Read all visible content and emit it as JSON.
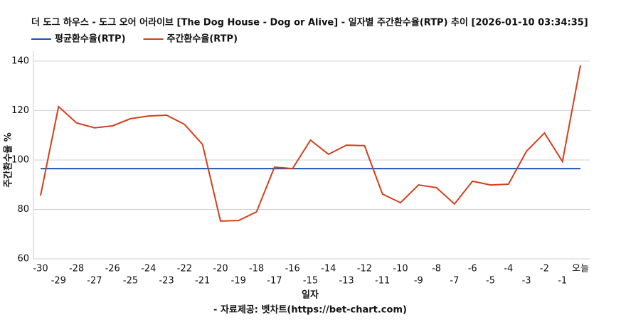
{
  "chart_data": {
    "type": "line",
    "title": "더 도그 하우스 - 도그 오어 어라이브 [The Dog House - Dog or Alive] - 일자별 주간환수율(RTP) 추이 [2026-01-10 03:34:35]",
    "x_label": "일자",
    "y_label": "주간환수율 %",
    "source": "- 자료제공: 벳차트(https://bet-chart.com)",
    "categories": [
      "-30",
      "-29",
      "-28",
      "-27",
      "-26",
      "-25",
      "-24",
      "-23",
      "-22",
      "-21",
      "-20",
      "-19",
      "-18",
      "-17",
      "-16",
      "-15",
      "-14",
      "-13",
      "-12",
      "-11",
      "-10",
      "-9",
      "-8",
      "-7",
      "-6",
      "-5",
      "-4",
      "-3",
      "-2",
      "-1",
      "오늘"
    ],
    "series": [
      {
        "name": "평균환수율(RTP)",
        "color": "#2155b5",
        "values": [
          96.5,
          96.5,
          96.5,
          96.5,
          96.5,
          96.5,
          96.5,
          96.5,
          96.5,
          96.5,
          96.5,
          96.5,
          96.5,
          96.5,
          96.5,
          96.5,
          96.5,
          96.5,
          96.5,
          96.5,
          96.5,
          96.5,
          96.5,
          96.5,
          96.5,
          96.5,
          96.5,
          96.5,
          96.5,
          96.5,
          96.5
        ]
      },
      {
        "name": "주간환수율(RTP)",
        "color": "#d23f1e",
        "values": [
          85.6,
          121.6,
          115,
          113,
          113.8,
          116.7,
          117.8,
          118.1,
          114.4,
          106.3,
          75.3,
          75.5,
          79,
          97.1,
          96.5,
          108,
          102.3,
          106,
          105.8,
          86.2,
          82.7,
          89.9,
          88.8,
          82.2,
          91.4,
          89.9,
          90.2,
          103.5,
          110.9,
          99.4,
          138.3
        ]
      }
    ],
    "ylim": [
      60,
      144
    ],
    "yticks": [
      60,
      80,
      100,
      120,
      140
    ],
    "grid": true
  }
}
